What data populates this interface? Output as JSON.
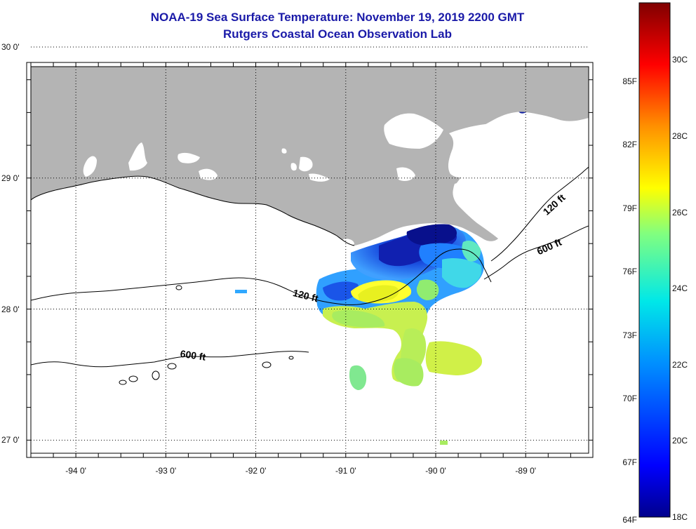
{
  "title": {
    "line1": "NOAA-19 Sea Surface Temperature:  November 19, 2019 2200 GMT",
    "line2": "Rutgers Coastal Ocean Observation Lab"
  },
  "map": {
    "lon_range": [
      -94.5,
      -88.3
    ],
    "lat_range": [
      26.9,
      29.85
    ],
    "lat_ticks": [
      {
        "value": 30,
        "label": "30 0'"
      },
      {
        "value": 29,
        "label": "29 0'"
      },
      {
        "value": 28,
        "label": "28 0'"
      },
      {
        "value": 27,
        "label": "27 0'"
      }
    ],
    "lon_ticks": [
      {
        "value": -94,
        "label": "-94 0'"
      },
      {
        "value": -93,
        "label": "-93 0'"
      },
      {
        "value": -92,
        "label": "-92 0'"
      },
      {
        "value": -91,
        "label": "-91 0'"
      },
      {
        "value": -90,
        "label": "-90 0'"
      },
      {
        "value": -89,
        "label": "-89 0'"
      }
    ],
    "grid": "dotted",
    "land_color": "#b4b4b4",
    "isobaths": [
      {
        "label": "120 ft"
      },
      {
        "label": "120 ft"
      },
      {
        "label": "600 ft"
      },
      {
        "label": "600 ft"
      }
    ]
  },
  "colorbar": {
    "range_c": [
      18,
      31.5
    ],
    "f_labels": [
      "85F",
      "82F",
      "79F",
      "76F",
      "73F",
      "70F",
      "67F",
      "64F"
    ],
    "c_labels": [
      "30C",
      "28C",
      "26C",
      "24C",
      "22C",
      "20C",
      "18C"
    ],
    "colors": [
      "#00008c",
      "#0000ff",
      "#0090ff",
      "#00e8e8",
      "#80ff80",
      "#ffff00",
      "#ff9000",
      "#ff0000",
      "#800000"
    ]
  }
}
